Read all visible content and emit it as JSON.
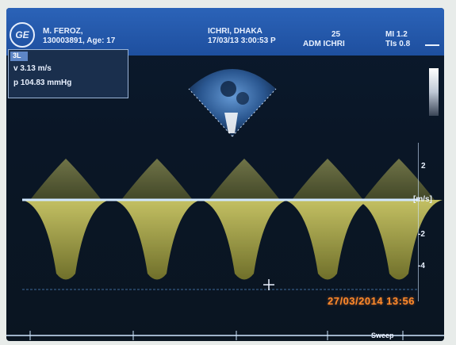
{
  "header": {
    "patient_name": "M. FEROZ,",
    "patient_id_age": "130003891, Age: 17",
    "institution": "ICHRI, DHAKA",
    "datetime": "17/03/13 3:00:53 P",
    "frame_number": "25",
    "operator": "ADM ICHRI",
    "mi": "MI 1.2",
    "tis": "TIs 0.8",
    "logo": "GE"
  },
  "measurements": {
    "tab_label": "3L",
    "velocity": "v     3.13 m/s",
    "pressure": "p   104.83 mmHg"
  },
  "scale": {
    "unit": "[m/s]",
    "ticks": [
      "2",
      "-2",
      "-4"
    ]
  },
  "timestamp": "27/03/2014 13:56",
  "sweep_label": "Sweep"
}
